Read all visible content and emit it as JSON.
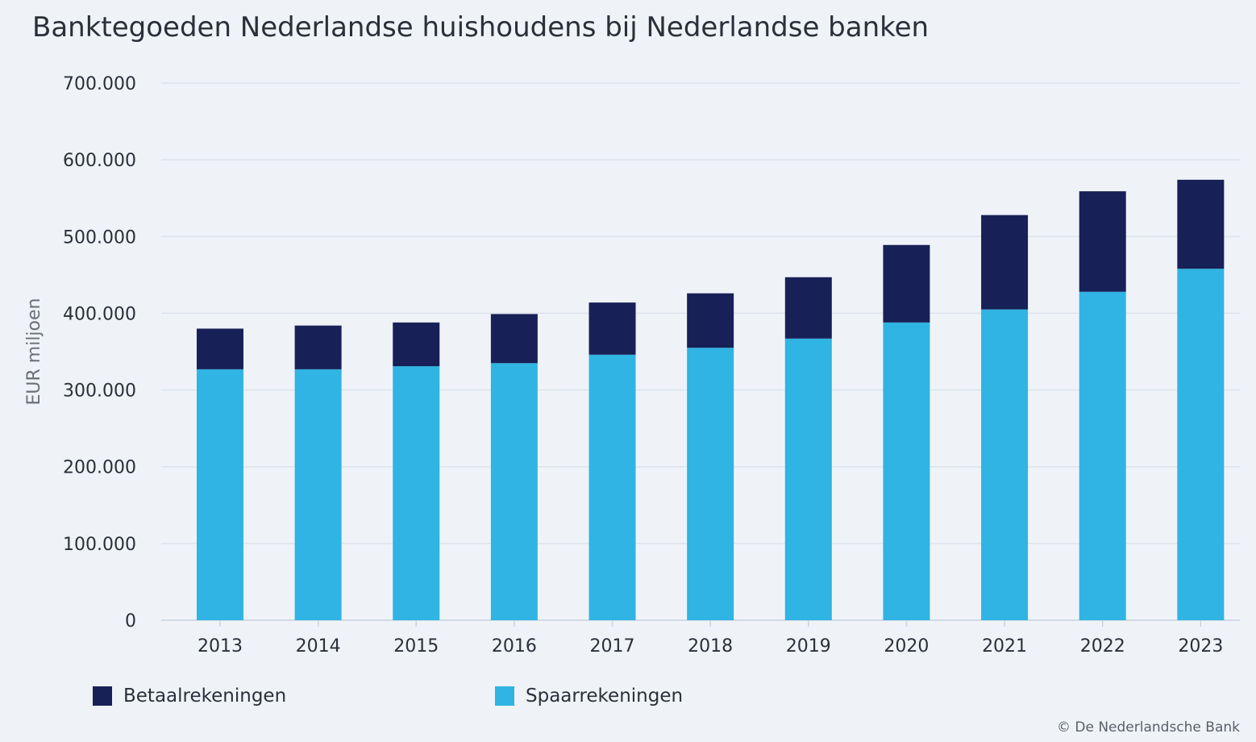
{
  "chart_data": {
    "type": "bar",
    "stacked": true,
    "title": "Banktegoeden Nederlandse huishoudens bij Nederlandse banken",
    "ylabel": "EUR miljoen",
    "xlabel": "",
    "ylim": [
      0,
      700000
    ],
    "yticks": [
      0,
      100000,
      200000,
      300000,
      400000,
      500000,
      600000,
      700000
    ],
    "ytick_labels": [
      "0",
      "100.000",
      "200.000",
      "300.000",
      "400.000",
      "500.000",
      "600.000",
      "700.000"
    ],
    "grid": true,
    "legend_position": "bottom",
    "categories": [
      "2013",
      "2014",
      "2015",
      "2016",
      "2017",
      "2018",
      "2019",
      "2020",
      "2021",
      "2022",
      "2023"
    ],
    "series": [
      {
        "name": "Spaarrekeningen",
        "color": "#2fb4e3",
        "values": [
          327000,
          327000,
          331000,
          335000,
          346000,
          355000,
          367000,
          388000,
          405000,
          428000,
          458000
        ]
      },
      {
        "name": "Betaalrekeningen",
        "color": "#172157",
        "values": [
          53000,
          57000,
          57000,
          64000,
          68000,
          71000,
          80000,
          101000,
          123000,
          131000,
          116000
        ]
      }
    ]
  },
  "legend": [
    {
      "label": "Betaalrekeningen",
      "color": "#172157"
    },
    {
      "label": "Spaarrekeningen",
      "color": "#2fb4e3"
    }
  ],
  "copyright": "© De Nederlandsche Bank"
}
